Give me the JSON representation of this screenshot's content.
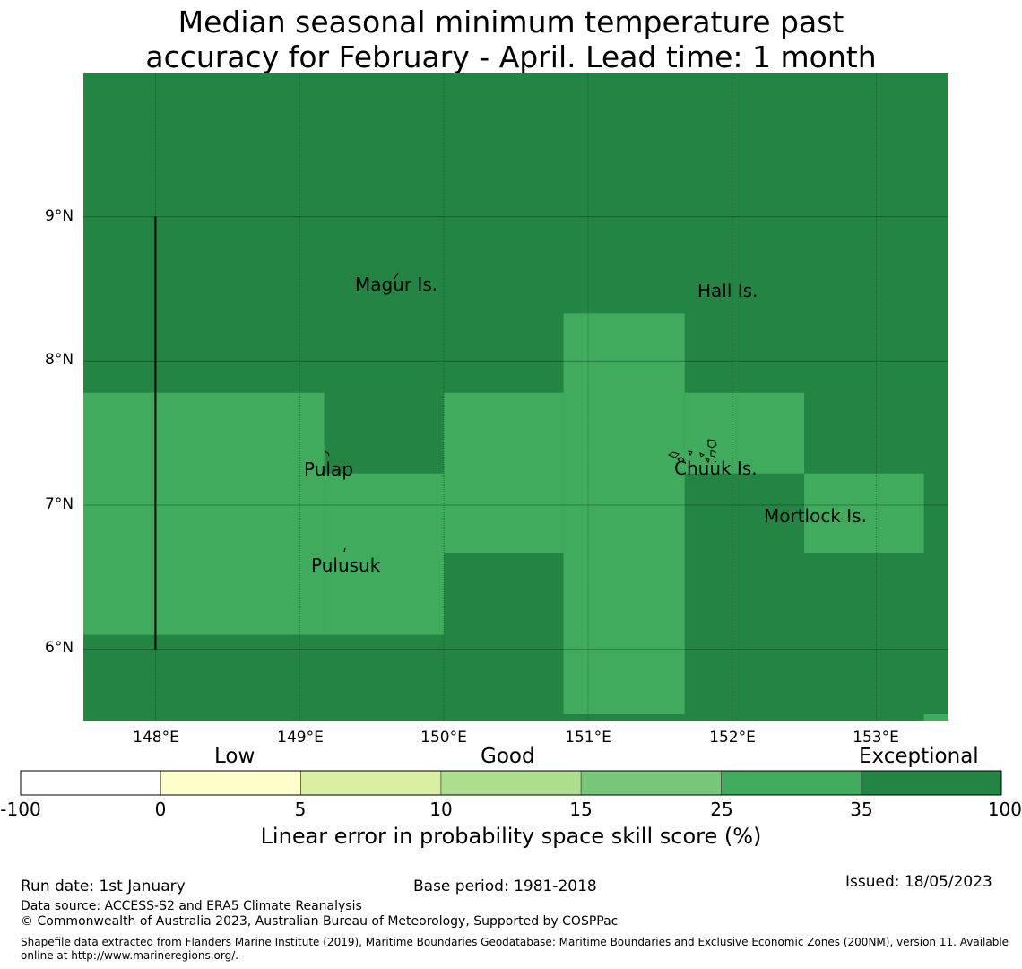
{
  "title": {
    "line1": "Median seasonal minimum temperature past",
    "line2": "accuracy for February - April. Lead time: 1 month"
  },
  "map": {
    "lon_range": [
      147.5,
      153.5
    ],
    "lat_range": [
      5.5,
      10.0
    ],
    "lat_ticks": [
      {
        "value": 9,
        "label": "9°N"
      },
      {
        "value": 8,
        "label": "8°N"
      },
      {
        "value": 7,
        "label": "7°N"
      },
      {
        "value": 6,
        "label": "6°N"
      }
    ],
    "lon_ticks": [
      {
        "value": 148,
        "label": "148°E"
      },
      {
        "value": 149,
        "label": "149°E"
      },
      {
        "value": 150,
        "label": "150°E"
      },
      {
        "value": 151,
        "label": "151°E"
      },
      {
        "value": 152,
        "label": "152°E"
      },
      {
        "value": 153,
        "label": "153°E"
      }
    ],
    "background_category": "exceptional",
    "cells": [
      {
        "category": "good35",
        "lon": [
          147.5,
          149.17
        ],
        "lat": [
          6.1,
          7.78
        ]
      },
      {
        "category": "good35",
        "lon": [
          149.17,
          150.0
        ],
        "lat": [
          6.1,
          7.22
        ]
      },
      {
        "category": "good35",
        "lon": [
          150.0,
          150.83
        ],
        "lat": [
          6.67,
          7.78
        ]
      },
      {
        "category": "good35",
        "lon": [
          150.83,
          151.67
        ],
        "lat": [
          5.55,
          8.33
        ]
      },
      {
        "category": "good35",
        "lon": [
          151.67,
          152.5
        ],
        "lat": [
          7.22,
          7.78
        ]
      },
      {
        "category": "good35",
        "lon": [
          152.5,
          153.33
        ],
        "lat": [
          6.67,
          7.22
        ]
      },
      {
        "category": "good35",
        "lon": [
          153.33,
          153.5
        ],
        "lat": [
          5.5,
          5.55
        ]
      }
    ],
    "boundary_line": {
      "lon": 148.0,
      "lat": [
        6.0,
        9.0
      ]
    },
    "places": [
      {
        "name": "Magur Is.",
        "lon": 149.68,
        "lat": 8.53
      },
      {
        "name": "Hall Is.",
        "lon": 151.97,
        "lat": 8.48
      },
      {
        "name": "Pulap",
        "lon": 149.2,
        "lat": 7.24
      },
      {
        "name": "Chuuk Is.",
        "lon": 151.88,
        "lat": 7.26
      },
      {
        "name": "Mortlock Is.",
        "lon": 152.58,
        "lat": 6.93
      },
      {
        "name": "Pulusuk",
        "lon": 149.33,
        "lat": 6.58
      }
    ]
  },
  "legend": {
    "categories": {
      "low": "Low",
      "good": "Good",
      "exceptional": "Exceptional"
    },
    "bins": [
      {
        "from": -100,
        "to": 0,
        "color": "#ffffff"
      },
      {
        "from": 0,
        "to": 5,
        "color": "#ffffcc"
      },
      {
        "from": 5,
        "to": 10,
        "color": "#d9f0a3"
      },
      {
        "from": 10,
        "to": 15,
        "color": "#addd8e"
      },
      {
        "from": 15,
        "to": 25,
        "color": "#78c679"
      },
      {
        "from": 25,
        "to": 35,
        "color": "#41ab5d"
      },
      {
        "from": 35,
        "to": 100,
        "color": "#238443"
      }
    ],
    "ticks": [
      "-100",
      "0",
      "5",
      "10",
      "15",
      "25",
      "35",
      "100"
    ],
    "label": "Linear error in probability space skill score (%)"
  },
  "colors": {
    "exceptional": "#238443",
    "good35": "#41ab5d",
    "gridline": "#000000",
    "island": "#000000"
  },
  "footer": {
    "run_date": "Run date: 1st January",
    "base_period": "Base period: 1981-2018",
    "issued": "Issued: 18/05/2023",
    "data_source": "Data source: ACCESS-S2 and ERA5 Climate Reanalysis",
    "copyright": "© Commonwealth of Australia 2023, Australian Bureau of Meteorology, Supported by COSPPac",
    "shapefile_line1": "Shapefile data extracted from Flanders Marine Institute (2019), Maritime Boundaries Geodatabase: Maritime Boundaries and Exclusive Economic Zones (200NM), version 11. Available",
    "shapefile_line2": "online at http://www.marineregions.org/."
  }
}
